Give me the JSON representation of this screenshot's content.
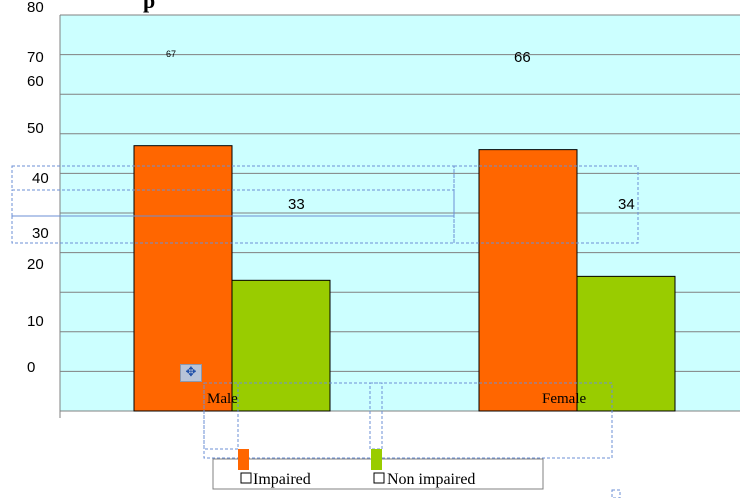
{
  "chart_data": {
    "type": "bar",
    "title_fragment": "p",
    "categories": [
      "Male",
      "Female"
    ],
    "series": [
      {
        "name": "Impaired",
        "values": [
          67,
          66
        ],
        "color": "#ff6600",
        "value_labels": [
          "67",
          "66"
        ]
      },
      {
        "name": "Non impaired",
        "values": [
          33,
          34
        ],
        "color": "#99cc00",
        "value_labels": [
          "33",
          "34"
        ]
      }
    ],
    "ylim": [
      0,
      100
    ],
    "y_tick_labels": [
      "80",
      "70",
      "60",
      "50",
      "40",
      "30",
      "20",
      "10",
      "0"
    ],
    "grid": true,
    "legend_position": "bottom"
  },
  "move_handle_icon": "move-cross-icon"
}
